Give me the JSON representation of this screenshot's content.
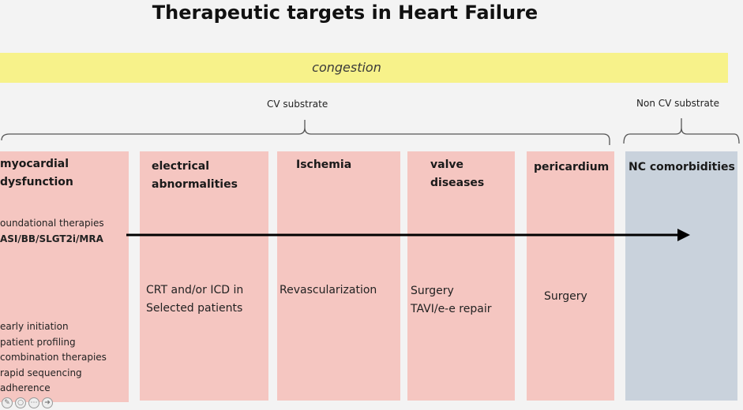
{
  "title": "Therapeutic targets in Heart Failure",
  "band_label": "congestion",
  "substrates": {
    "cv": "CV substrate",
    "non_cv": "Non CV substrate"
  },
  "boxes": [
    {
      "title": "myocardial\ndysfunction",
      "foundational_heading": "oundational therapies",
      "foundational_drugs": "ASI/BB/SLGT2i/MRA",
      "bullets": [
        "early initiation",
        "patient profiling",
        "combination therapies",
        "rapid sequencing",
        "adherence"
      ]
    },
    {
      "title": "electrical\nabnormalities",
      "text": "CRT and/or ICD in\nSelected patients"
    },
    {
      "title": "Ischemia",
      "text": "Revascularization"
    },
    {
      "title": "valve\ndiseases",
      "text": "Surgery\nTAVI/e-e repair"
    },
    {
      "title": "pericardium",
      "text": "Surgery"
    },
    {
      "title": "NC comorbidities"
    }
  ],
  "colors": {
    "band": "#f7f28a",
    "box": "#f5c6c1",
    "box_non_cv": "#c9d2dc",
    "arrow": "#000000"
  },
  "icons": [
    "pencil-icon",
    "circle-icon",
    "more-icon",
    "arrow-right-icon"
  ]
}
